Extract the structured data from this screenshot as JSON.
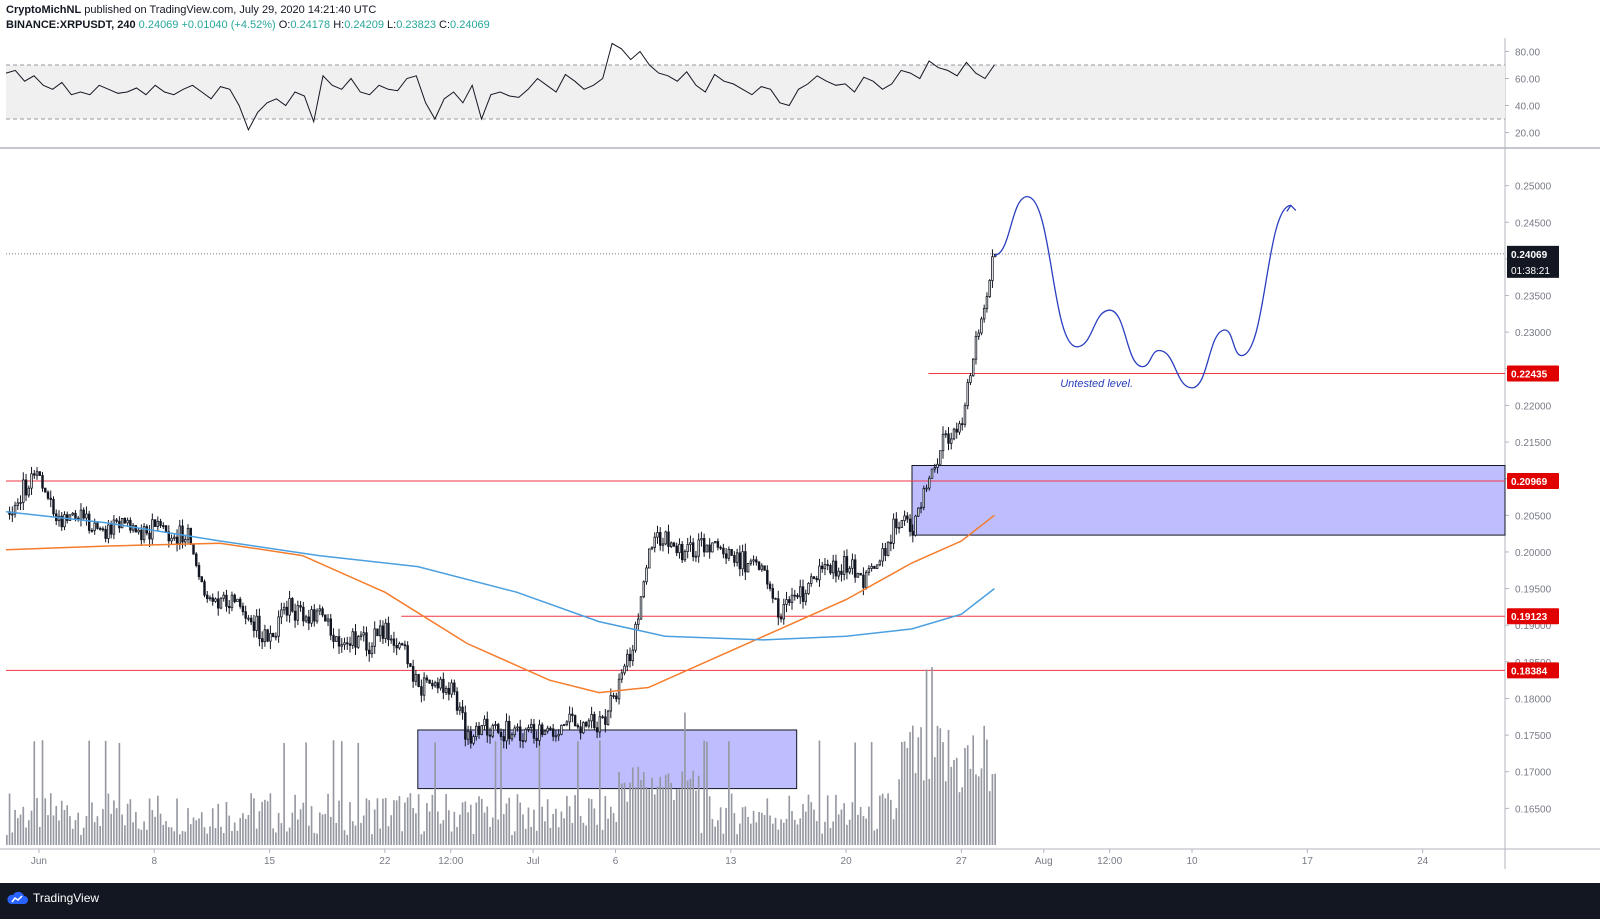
{
  "header": {
    "author": "CryptoMichNL",
    "published": "published on TradingView.com, July 29, 2020 14:21:40 UTC",
    "symbol": "BINANCE:XRPUSDT, 240",
    "last": "0.24069",
    "change": "+0.01040 (+4.52%)",
    "o_key": "O:",
    "o_val": "0.24178",
    "h_key": "H:",
    "h_val": "0.24209",
    "l_key": "L:",
    "l_val": "0.23823",
    "c_key": "C:",
    "c_val": "0.24069"
  },
  "footer": {
    "brand": "TradingView",
    "logo_icon": "tradingview-cloud-icon"
  },
  "colors": {
    "grid_line": "#e0e3eb",
    "up_candle": "#ffffff",
    "down_candle": "#131722",
    "wick": "#131722",
    "ma_fast": "#f57c2b",
    "ma_slow": "#4a9fe0",
    "projection": "#2a3fbf",
    "level_line": "#f23645",
    "zone_fill": "#b3b3ff",
    "rsi_line": "#131722",
    "rsi_band": "#f0f0f0",
    "price_tag_bg": "#131722",
    "level_tag_bg": "#e00000"
  },
  "chart_data": [
    {
      "type": "line",
      "panel": "RSI",
      "ylim": [
        10,
        90
      ],
      "yticks": [
        20,
        40,
        60,
        80
      ],
      "ytick_labels": [
        "20.00",
        "40.00",
        "60.00",
        "80.00"
      ],
      "band": [
        30,
        70
      ],
      "values": [
        64,
        66,
        58,
        62,
        55,
        52,
        57,
        48,
        50,
        48,
        55,
        52,
        49,
        50,
        53,
        48,
        55,
        50,
        48,
        52,
        55,
        50,
        45,
        54,
        52,
        40,
        22,
        35,
        42,
        45,
        40,
        50,
        47,
        28,
        62,
        55,
        52,
        60,
        50,
        48,
        55,
        52,
        51,
        60,
        62,
        42,
        30,
        45,
        50,
        42,
        55,
        30,
        48,
        50,
        47,
        46,
        52,
        60,
        55,
        50,
        63,
        58,
        52,
        55,
        60,
        86,
        82,
        74,
        80,
        70,
        64,
        62,
        58,
        65,
        55,
        50,
        63,
        58,
        56,
        52,
        48,
        54,
        52,
        42,
        40,
        52,
        56,
        62,
        58,
        55,
        56,
        50,
        61,
        58,
        52,
        56,
        66,
        64,
        60,
        73,
        68,
        66,
        62,
        72,
        64,
        60,
        70
      ],
      "last": 70
    },
    {
      "type": "candlestick",
      "panel": "price",
      "ylim": [
        0.16,
        0.2535
      ],
      "yticks": [
        0.165,
        0.17,
        0.175,
        0.18,
        0.185,
        0.19,
        0.195,
        0.2,
        0.205,
        0.21,
        0.215,
        0.22,
        0.225,
        0.23,
        0.235,
        0.24,
        0.245,
        0.25
      ],
      "ytick_labels": [
        "0.16500",
        "0.17000",
        "0.17500",
        "0.18000",
        "0.18500",
        "0.19000",
        "0.19500",
        "0.20000",
        "0.20500",
        "0.21000",
        "0.21500",
        "0.22000",
        "0.22500",
        "0.23000",
        "0.23500",
        "0.24000",
        "0.24500",
        "0.25000"
      ],
      "x_range": [
        "2020-05-30",
        "2020-08-29"
      ],
      "x_ticks": [
        {
          "date": "2020-06-01",
          "label": "Jun"
        },
        {
          "date": "2020-06-08",
          "label": "8"
        },
        {
          "date": "2020-06-15",
          "label": "15"
        },
        {
          "date": "2020-06-22",
          "label": "22"
        },
        {
          "date": "2020-06-26",
          "label": "12:00"
        },
        {
          "date": "2020-07-01",
          "label": "Jul"
        },
        {
          "date": "2020-07-06",
          "label": "6"
        },
        {
          "date": "2020-07-13",
          "label": "13"
        },
        {
          "date": "2020-07-20",
          "label": "20"
        },
        {
          "date": "2020-07-27",
          "label": "27"
        },
        {
          "date": "2020-08-01",
          "label": "Aug"
        },
        {
          "date": "2020-08-05",
          "label": "12:00"
        },
        {
          "date": "2020-08-10",
          "label": "10"
        },
        {
          "date": "2020-08-17",
          "label": "17"
        },
        {
          "date": "2020-08-24",
          "label": "24"
        }
      ],
      "close_path": [
        {
          "date": "2020-05-30",
          "value": 0.2055
        },
        {
          "date": "2020-05-31",
          "value": 0.2085
        },
        {
          "date": "2020-06-01",
          "value": 0.2105
        },
        {
          "date": "2020-06-02",
          "value": 0.2035
        },
        {
          "date": "2020-06-03",
          "value": 0.2055
        },
        {
          "date": "2020-06-04",
          "value": 0.2035
        },
        {
          "date": "2020-06-05",
          "value": 0.2025
        },
        {
          "date": "2020-06-06",
          "value": 0.2045
        },
        {
          "date": "2020-06-07",
          "value": 0.2025
        },
        {
          "date": "2020-06-08",
          "value": 0.2035
        },
        {
          "date": "2020-06-09",
          "value": 0.2025
        },
        {
          "date": "2020-06-10",
          "value": 0.2025
        },
        {
          "date": "2020-06-11",
          "value": 0.1945
        },
        {
          "date": "2020-06-12",
          "value": 0.1935
        },
        {
          "date": "2020-06-13",
          "value": 0.1935
        },
        {
          "date": "2020-06-14",
          "value": 0.1905
        },
        {
          "date": "2020-06-15",
          "value": 0.1875
        },
        {
          "date": "2020-06-16",
          "value": 0.1925
        },
        {
          "date": "2020-06-17",
          "value": 0.1915
        },
        {
          "date": "2020-06-18",
          "value": 0.1915
        },
        {
          "date": "2020-06-19",
          "value": 0.1885
        },
        {
          "date": "2020-06-20",
          "value": 0.1885
        },
        {
          "date": "2020-06-21",
          "value": 0.1875
        },
        {
          "date": "2020-06-22",
          "value": 0.1895
        },
        {
          "date": "2020-06-23",
          "value": 0.1875
        },
        {
          "date": "2020-06-24",
          "value": 0.1815
        },
        {
          "date": "2020-06-25",
          "value": 0.1825
        },
        {
          "date": "2020-06-26",
          "value": 0.1815
        },
        {
          "date": "2020-06-27",
          "value": 0.1745
        },
        {
          "date": "2020-06-28",
          "value": 0.1765
        },
        {
          "date": "2020-06-29",
          "value": 0.1755
        },
        {
          "date": "2020-06-30",
          "value": 0.1755
        },
        {
          "date": "2020-07-01",
          "value": 0.1755
        },
        {
          "date": "2020-07-02",
          "value": 0.1755
        },
        {
          "date": "2020-07-03",
          "value": 0.1765
        },
        {
          "date": "2020-07-04",
          "value": 0.1765
        },
        {
          "date": "2020-07-05",
          "value": 0.1765
        },
        {
          "date": "2020-07-06",
          "value": 0.1805
        },
        {
          "date": "2020-07-07",
          "value": 0.1875
        },
        {
          "date": "2020-07-08",
          "value": 0.2005
        },
        {
          "date": "2020-07-09",
          "value": 0.2025
        },
        {
          "date": "2020-07-10",
          "value": 0.1995
        },
        {
          "date": "2020-07-11",
          "value": 0.2005
        },
        {
          "date": "2020-07-12",
          "value": 0.2015
        },
        {
          "date": "2020-07-13",
          "value": 0.1995
        },
        {
          "date": "2020-07-14",
          "value": 0.1985
        },
        {
          "date": "2020-07-15",
          "value": 0.1975
        },
        {
          "date": "2020-07-16",
          "value": 0.1915
        },
        {
          "date": "2020-07-17",
          "value": 0.1935
        },
        {
          "date": "2020-07-18",
          "value": 0.1965
        },
        {
          "date": "2020-07-19",
          "value": 0.1975
        },
        {
          "date": "2020-07-20",
          "value": 0.1985
        },
        {
          "date": "2020-07-21",
          "value": 0.1965
        },
        {
          "date": "2020-07-22",
          "value": 0.1985
        },
        {
          "date": "2020-07-23",
          "value": 0.2045
        },
        {
          "date": "2020-07-24",
          "value": 0.2035
        },
        {
          "date": "2020-07-25",
          "value": 0.2105
        },
        {
          "date": "2020-07-26",
          "value": 0.2155
        },
        {
          "date": "2020-07-27",
          "value": 0.2185
        },
        {
          "date": "2020-07-28",
          "value": 0.2305
        },
        {
          "date": "2020-07-29",
          "value": 0.2407
        }
      ],
      "last_price": 0.24069,
      "last_price_label": "0.24069",
      "countdown": "01:38:21",
      "moving_averages": [
        {
          "color": "#f57c2b",
          "points": [
            {
              "date": "2020-05-30",
              "value": 0.2003
            },
            {
              "date": "2020-06-05",
              "value": 0.2008
            },
            {
              "date": "2020-06-12",
              "value": 0.2012
            },
            {
              "date": "2020-06-17",
              "value": 0.1995
            },
            {
              "date": "2020-06-22",
              "value": 0.1945
            },
            {
              "date": "2020-06-27",
              "value": 0.1875
            },
            {
              "date": "2020-07-02",
              "value": 0.1825
            },
            {
              "date": "2020-07-05",
              "value": 0.1808
            },
            {
              "date": "2020-07-08",
              "value": 0.1815
            },
            {
              "date": "2020-07-12",
              "value": 0.1855
            },
            {
              "date": "2020-07-16",
              "value": 0.1895
            },
            {
              "date": "2020-07-20",
              "value": 0.1935
            },
            {
              "date": "2020-07-24",
              "value": 0.1985
            },
            {
              "date": "2020-07-27",
              "value": 0.2015
            },
            {
              "date": "2020-07-29",
              "value": 0.205
            }
          ]
        },
        {
          "color": "#4a9fe0",
          "points": [
            {
              "date": "2020-05-30",
              "value": 0.2055
            },
            {
              "date": "2020-06-05",
              "value": 0.204
            },
            {
              "date": "2020-06-12",
              "value": 0.2015
            },
            {
              "date": "2020-06-18",
              "value": 0.1995
            },
            {
              "date": "2020-06-24",
              "value": 0.198
            },
            {
              "date": "2020-06-30",
              "value": 0.1945
            },
            {
              "date": "2020-07-05",
              "value": 0.1905
            },
            {
              "date": "2020-07-09",
              "value": 0.1885
            },
            {
              "date": "2020-07-15",
              "value": 0.188
            },
            {
              "date": "2020-07-20",
              "value": 0.1885
            },
            {
              "date": "2020-07-24",
              "value": 0.1895
            },
            {
              "date": "2020-07-27",
              "value": 0.1915
            },
            {
              "date": "2020-07-29",
              "value": 0.195
            }
          ]
        }
      ],
      "levels": [
        {
          "value": 0.20969,
          "label": "0.20969",
          "from": "2020-05-30"
        },
        {
          "value": 0.22435,
          "label": "0.22435",
          "from": "2020-07-25"
        },
        {
          "value": 0.19123,
          "label": "0.19123",
          "from": "2020-06-23"
        },
        {
          "value": 0.18384,
          "label": "0.18384",
          "from": "2020-05-30"
        }
      ],
      "zones": [
        {
          "x0": "2020-07-24",
          "x1": "2020-08-29",
          "y0": 0.2023,
          "y1": 0.2118
        },
        {
          "x0": "2020-06-24",
          "x1": "2020-07-17",
          "y0": 0.1677,
          "y1": 0.1757
        }
      ],
      "projection": [
        {
          "date": "2020-07-29",
          "value": 0.2405
        },
        {
          "date": "2020-07-31",
          "value": 0.2485
        },
        {
          "date": "2020-08-03",
          "value": 0.228
        },
        {
          "date": "2020-08-05",
          "value": 0.233
        },
        {
          "date": "2020-08-07",
          "value": 0.2253
        },
        {
          "date": "2020-08-08",
          "value": 0.2275
        },
        {
          "date": "2020-08-10",
          "value": 0.2224
        },
        {
          "date": "2020-08-12",
          "value": 0.2303
        },
        {
          "date": "2020-08-13",
          "value": 0.2268
        },
        {
          "date": "2020-08-16",
          "value": 0.2473
        }
      ],
      "annotation": {
        "text": "Untested level.",
        "date": "2020-08-02",
        "value": 0.2225
      }
    }
  ]
}
